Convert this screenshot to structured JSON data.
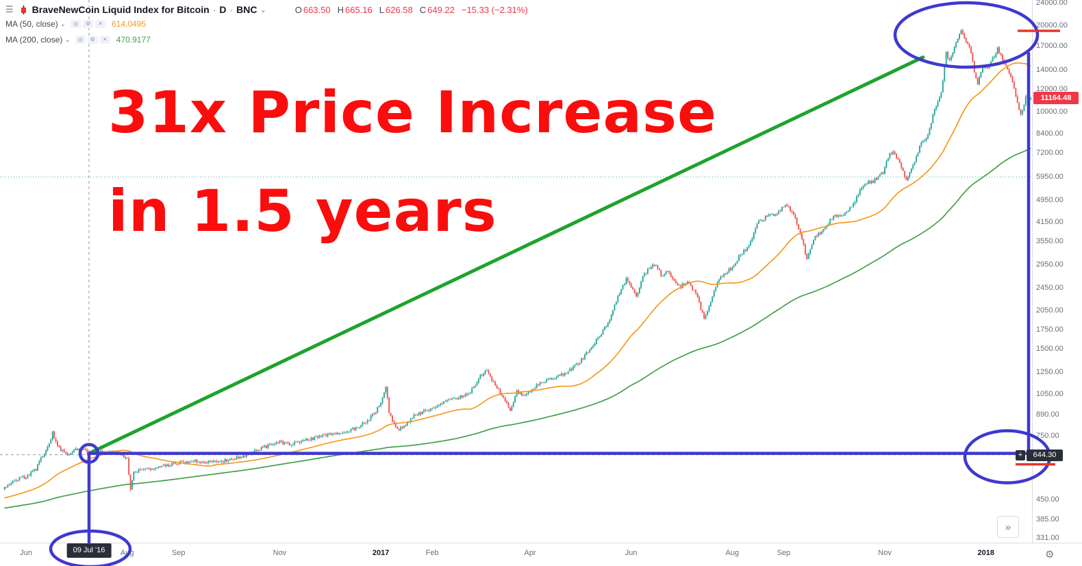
{
  "header": {
    "title": "BraveNewCoin Liquid Index for Bitcoin",
    "sep": "·",
    "interval": "D",
    "exchange": "BNC",
    "labels": {
      "o": "O",
      "h": "H",
      "l": "L",
      "c": "C"
    },
    "ohlc": {
      "o": "663.50",
      "h": "665.16",
      "l": "626.58",
      "c": "649.22",
      "change": "−15.33 (−2.31%)"
    }
  },
  "indicators": [
    {
      "label": "MA (50, close)",
      "value": "614.0495"
    },
    {
      "label": "MA (200, close)",
      "value": "470.9177"
    }
  ],
  "annotation": {
    "line1": "31x Price Increase",
    "line2": "in 1.5 years"
  },
  "badges": {
    "last_price": "11164.48",
    "crosshair_price": "644.30",
    "crosshair_date": "09 Jul '16"
  },
  "icons": {
    "menu": "☰",
    "caret": "⌄",
    "eye": "◎",
    "gear": "⚙",
    "close": "✕",
    "plus": "+",
    "settings_gear": "⚙"
  },
  "controls": {
    "more": "»"
  },
  "colors": {
    "up": "#26a69a",
    "down": "#ef5350",
    "neg": "#f23645",
    "ma50": "#f49a20",
    "ma200": "#43a047",
    "trend_green": "#1fa32c",
    "annotation_blue": "#3d39cf",
    "marker_red": "#e8352c",
    "big_text_red": "#fb0d0d",
    "badge_dark": "#2a2e39",
    "axis_text": "#686d78",
    "title_text": "#131722",
    "muted": "#787b86",
    "crosshair": "#9598a1",
    "level_teal": "#26a69a",
    "grid_border": "#d8dbe0"
  },
  "axes": {
    "price_ticks": [
      24000,
      20000,
      17000,
      14000,
      12000,
      10000,
      8400,
      7200,
      5950,
      4950,
      4150,
      3550,
      2950,
      2450,
      2050,
      1750,
      1500,
      1250,
      1050,
      890,
      750,
      450,
      385,
      331
    ],
    "time_ticks": [
      {
        "label": "Jun",
        "day": 0
      },
      {
        "label": "Aug",
        "day": 61
      },
      {
        "label": "Sep",
        "day": 92
      },
      {
        "label": "Nov",
        "day": 153
      },
      {
        "label": "2017",
        "day": 214,
        "major": true
      },
      {
        "label": "Feb",
        "day": 245
      },
      {
        "label": "Apr",
        "day": 304
      },
      {
        "label": "Jun",
        "day": 365
      },
      {
        "label": "Aug",
        "day": 426
      },
      {
        "label": "Sep",
        "day": 457
      },
      {
        "label": "Nov",
        "day": 518
      },
      {
        "label": "2018",
        "day": 579,
        "major": true
      }
    ]
  },
  "chart_data": {
    "type": "candlestick",
    "title": "BraveNewCoin Liquid Index for Bitcoin",
    "interval": "D",
    "scale": "log",
    "x_range": "May 2016 – Jan 2018 (day 0 = 01 Jun 2016)",
    "ylim": [
      331,
      24500
    ],
    "visible_from": -13,
    "crosshair_candle": {
      "day": 38,
      "date": "09 Jul '16",
      "o": 663.5,
      "h": 665.16,
      "l": 626.58,
      "c": 649.22
    },
    "last_close": 11164.48,
    "ma": [
      {
        "name": "MA 50",
        "period": 50,
        "value_at_crosshair": 614.0495
      },
      {
        "name": "MA 200",
        "period": 200,
        "value_at_crosshair": 470.9177
      }
    ],
    "annotations": {
      "crosshair": {
        "day": 38,
        "price": 644.3
      },
      "level_line_price": 5950,
      "trend_line": {
        "from_day": 38,
        "from_price": 644.3,
        "to_day": 541,
        "to_price": 15500
      },
      "peak_price_marked": 20000
    },
    "price_anchors": [
      [
        -212,
        335
      ],
      [
        -180,
        390
      ],
      [
        -150,
        432
      ],
      [
        -120,
        425
      ],
      [
        -95,
        418
      ],
      [
        -70,
        425
      ],
      [
        -45,
        448
      ],
      [
        -25,
        465
      ],
      [
        -13,
        495
      ],
      [
        -5,
        530
      ],
      [
        0,
        540
      ],
      [
        6,
        575
      ],
      [
        10,
        640
      ],
      [
        14,
        700
      ],
      [
        16,
        765
      ],
      [
        19,
        690
      ],
      [
        22,
        665
      ],
      [
        26,
        640
      ],
      [
        30,
        672
      ],
      [
        34,
        680
      ],
      [
        38,
        649
      ],
      [
        42,
        655
      ],
      [
        47,
        662
      ],
      [
        52,
        658
      ],
      [
        57,
        650
      ],
      [
        61,
        620
      ],
      [
        62,
        555
      ],
      [
        63,
        490
      ],
      [
        65,
        565
      ],
      [
        70,
        572
      ],
      [
        78,
        578
      ],
      [
        85,
        590
      ],
      [
        92,
        605
      ],
      [
        100,
        612
      ],
      [
        110,
        606
      ],
      [
        122,
        616
      ],
      [
        130,
        632
      ],
      [
        140,
        672
      ],
      [
        148,
        700
      ],
      [
        153,
        712
      ],
      [
        160,
        703
      ],
      [
        168,
        722
      ],
      [
        176,
        738
      ],
      [
        183,
        756
      ],
      [
        192,
        772
      ],
      [
        200,
        800
      ],
      [
        207,
        858
      ],
      [
        211,
        912
      ],
      [
        213,
        962
      ],
      [
        215,
        1010
      ],
      [
        217,
        1125
      ],
      [
        219,
        905
      ],
      [
        222,
        820
      ],
      [
        225,
        785
      ],
      [
        229,
        822
      ],
      [
        234,
        882
      ],
      [
        240,
        908
      ],
      [
        245,
        928
      ],
      [
        252,
        985
      ],
      [
        260,
        1012
      ],
      [
        268,
        1062
      ],
      [
        274,
        1210
      ],
      [
        278,
        1268
      ],
      [
        283,
        1115
      ],
      [
        288,
        1025
      ],
      [
        292,
        905
      ],
      [
        296,
        1065
      ],
      [
        300,
        1035
      ],
      [
        304,
        1072
      ],
      [
        310,
        1152
      ],
      [
        318,
        1188
      ],
      [
        326,
        1242
      ],
      [
        334,
        1352
      ],
      [
        341,
        1522
      ],
      [
        347,
        1702
      ],
      [
        352,
        1902
      ],
      [
        357,
        2302
      ],
      [
        362,
        2622
      ],
      [
        365,
        2452
      ],
      [
        368,
        2272
      ],
      [
        372,
        2652
      ],
      [
        376,
        2882
      ],
      [
        380,
        2952
      ],
      [
        383,
        2712
      ],
      [
        387,
        2762
      ],
      [
        391,
        2602
      ],
      [
        395,
        2482
      ],
      [
        399,
        2572
      ],
      [
        404,
        2352
      ],
      [
        409,
        1912
      ],
      [
        413,
        2202
      ],
      [
        417,
        2552
      ],
      [
        421,
        2752
      ],
      [
        426,
        2872
      ],
      [
        431,
        3212
      ],
      [
        436,
        3432
      ],
      [
        441,
        4092
      ],
      [
        446,
        4322
      ],
      [
        451,
        4382
      ],
      [
        456,
        4612
      ],
      [
        459,
        4752
      ],
      [
        463,
        4392
      ],
      [
        467,
        3812
      ],
      [
        471,
        3082
      ],
      [
        475,
        3622
      ],
      [
        480,
        3852
      ],
      [
        487,
        4352
      ],
      [
        493,
        4412
      ],
      [
        499,
        4792
      ],
      [
        505,
        5602
      ],
      [
        511,
        5752
      ],
      [
        517,
        6152
      ],
      [
        521,
        7252
      ],
      [
        524,
        7152
      ],
      [
        528,
        6452
      ],
      [
        531,
        5752
      ],
      [
        535,
        6552
      ],
      [
        540,
        7852
      ],
      [
        544,
        8252
      ],
      [
        548,
        10252
      ],
      [
        552,
        11652
      ],
      [
        555,
        16002
      ],
      [
        557,
        15102
      ],
      [
        560,
        16702
      ],
      [
        564,
        19502
      ],
      [
        567,
        17602
      ],
      [
        570,
        16202
      ],
      [
        572,
        13902
      ],
      [
        574,
        12602
      ],
      [
        577,
        14302
      ],
      [
        580,
        14102
      ],
      [
        583,
        15302
      ],
      [
        586,
        16602
      ],
      [
        589,
        15202
      ],
      [
        593,
        13702
      ],
      [
        597,
        11502
      ],
      [
        600,
        9702
      ],
      [
        603,
        11202
      ],
      [
        606,
        11164
      ]
    ]
  }
}
